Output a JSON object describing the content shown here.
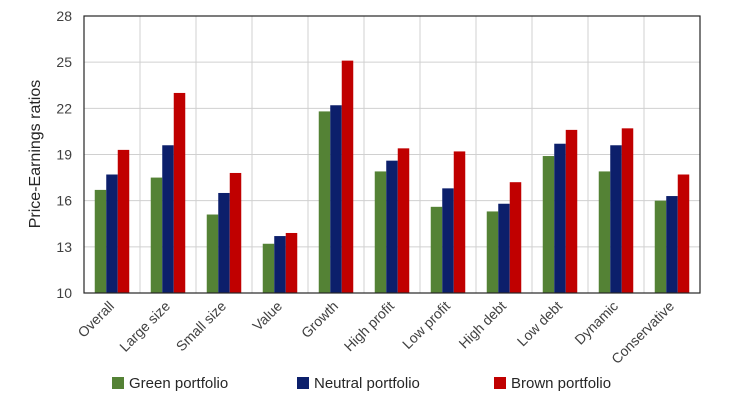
{
  "chart_data": {
    "type": "bar",
    "title": "",
    "xlabel": "",
    "ylabel": "Price-Earnings ratios",
    "ylim": [
      10,
      28
    ],
    "yticks": [
      10,
      13,
      16,
      19,
      22,
      25,
      28
    ],
    "grid": true,
    "legend_position": "bottom",
    "categories": [
      "Overall",
      "Large size",
      "Small size",
      "Value",
      "Growth",
      "High profit",
      "Low profit",
      "High debt",
      "Low debt",
      "Dynamic",
      "Conservative"
    ],
    "series": [
      {
        "name": "Green portfolio",
        "color": "#548235",
        "values": [
          16.7,
          17.5,
          15.1,
          13.2,
          21.8,
          17.9,
          15.6,
          15.3,
          18.9,
          17.9,
          16.0
        ]
      },
      {
        "name": "Neutral portfolio",
        "color": "#0c1f6b",
        "values": [
          17.7,
          19.6,
          16.5,
          13.7,
          22.2,
          18.6,
          16.8,
          15.8,
          19.7,
          19.6,
          16.3
        ]
      },
      {
        "name": "Brown portfolio",
        "color": "#c00000",
        "values": [
          19.3,
          23.0,
          17.8,
          13.9,
          25.1,
          19.4,
          19.2,
          17.2,
          20.6,
          20.7,
          17.7
        ]
      }
    ]
  }
}
